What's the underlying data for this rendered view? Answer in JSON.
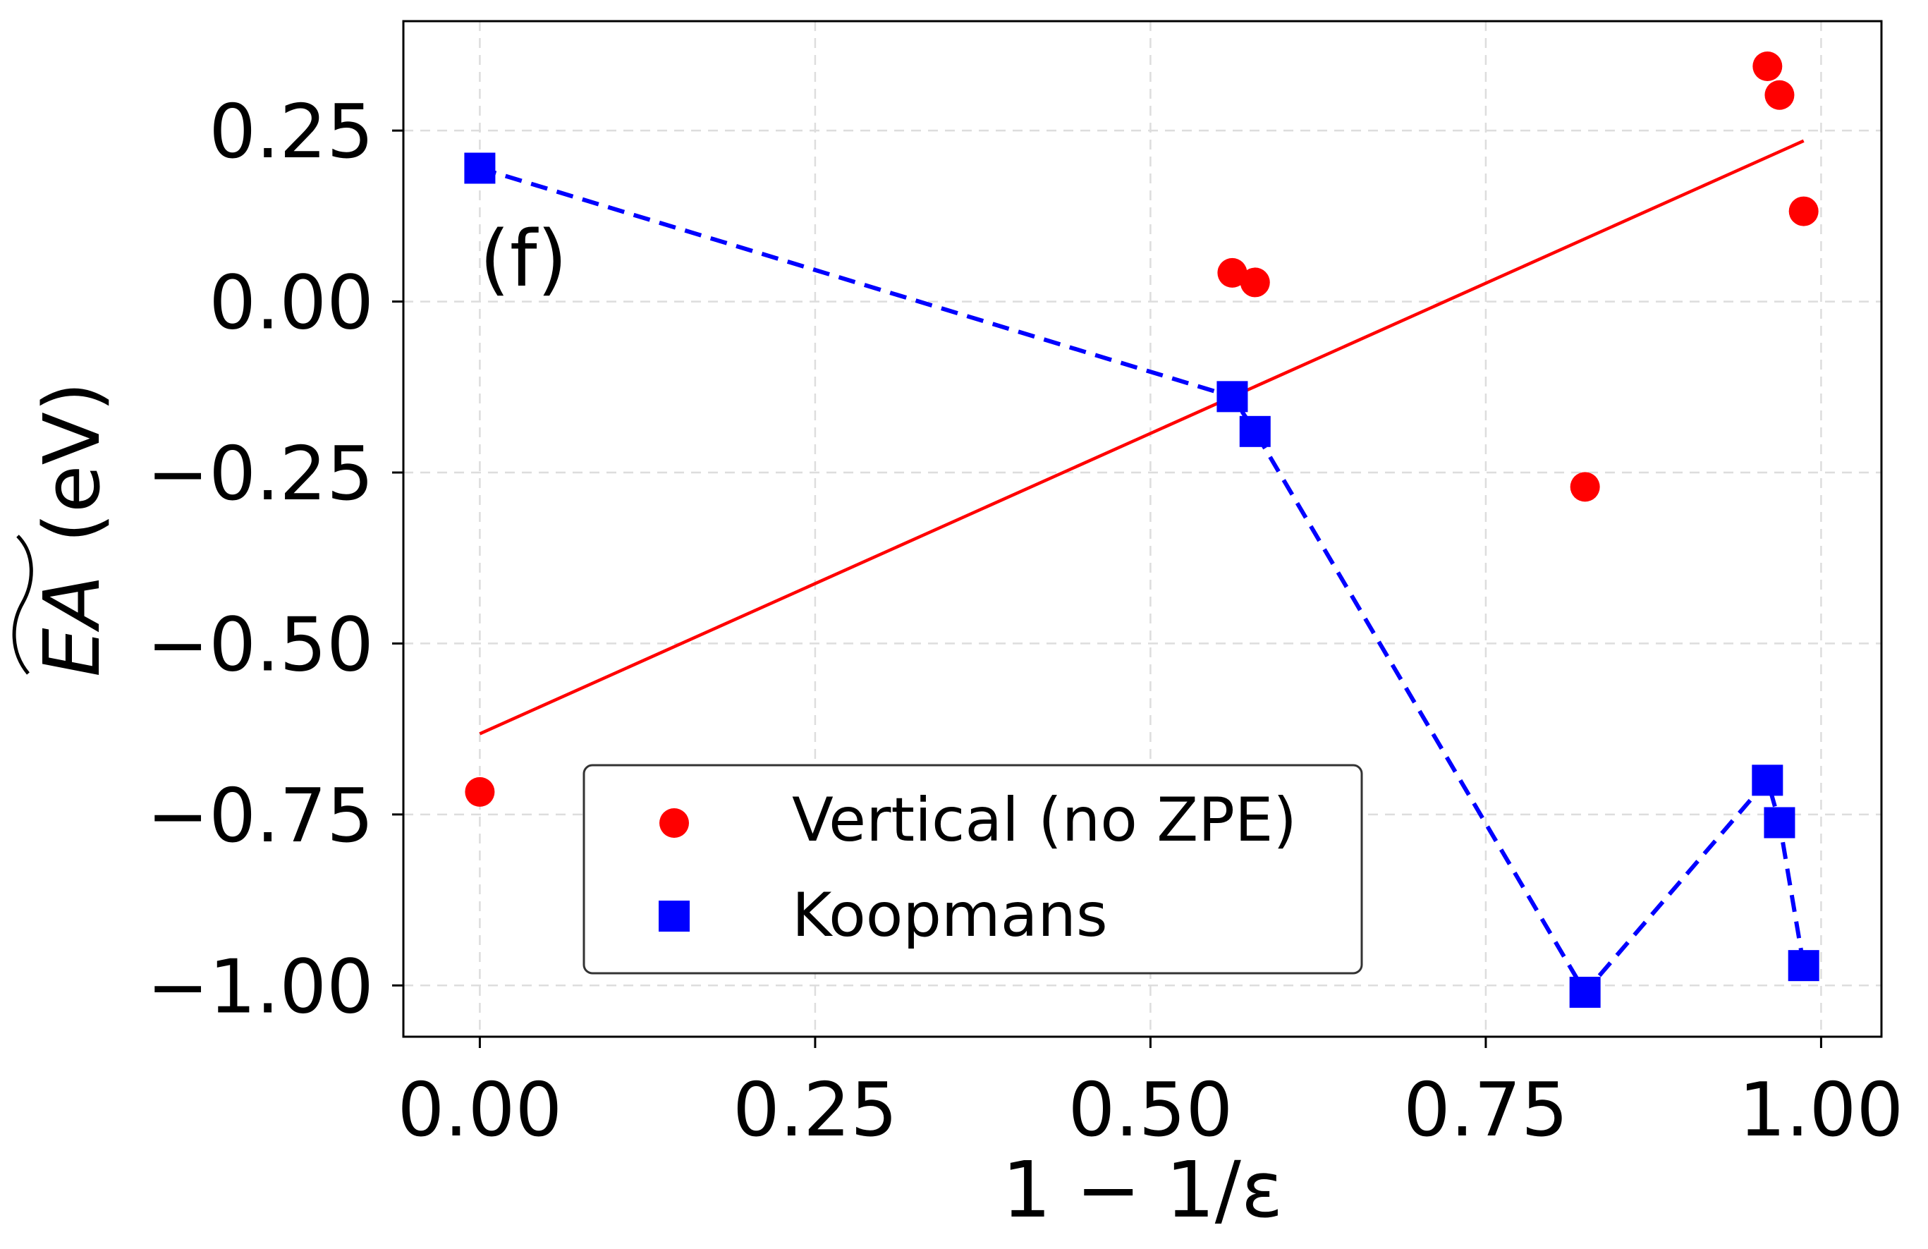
{
  "chart_data": {
    "type": "scatter",
    "title": "",
    "panel_label": "(f)",
    "xlabel": "1 − 1/ε",
    "ylabel_main": "EA",
    "ylabel_unit": "(eV)",
    "xlim": [
      -0.057,
      1.045
    ],
    "ylim": [
      -1.075,
      0.41
    ],
    "xticks": [
      0.0,
      0.25,
      0.5,
      0.75,
      1.0
    ],
    "xtick_labels": [
      "0.00",
      "0.25",
      "0.50",
      "0.75",
      "1.00"
    ],
    "yticks": [
      0.25,
      0.0,
      -0.25,
      -0.5,
      -0.75,
      -1.0
    ],
    "ytick_labels": [
      "0.25",
      "0.00",
      "−0.25",
      "−0.50",
      "−0.75",
      "−1.00"
    ],
    "grid": true,
    "legend_position": "lower-center",
    "series": [
      {
        "name": "Vertical (no ZPE)",
        "marker": "circle",
        "color": "#ff0000",
        "x": [
          0.0,
          0.561,
          0.578,
          0.824,
          0.96,
          0.969,
          0.987
        ],
        "y": [
          -0.717,
          0.042,
          0.028,
          -0.271,
          0.344,
          0.302,
          0.132
        ]
      },
      {
        "name": "Koopmans",
        "marker": "square",
        "color": "#0000ff",
        "line": "dashed",
        "x": [
          0.0,
          0.561,
          0.578,
          0.824,
          0.96,
          0.969,
          0.987
        ],
        "y": [
          0.195,
          -0.139,
          -0.19,
          -1.01,
          -0.7,
          -0.762,
          -0.971
        ]
      }
    ],
    "fit_line": {
      "color": "#ff0000",
      "x": [
        0.0,
        0.987
      ],
      "y": [
        -0.632,
        0.235
      ]
    }
  }
}
